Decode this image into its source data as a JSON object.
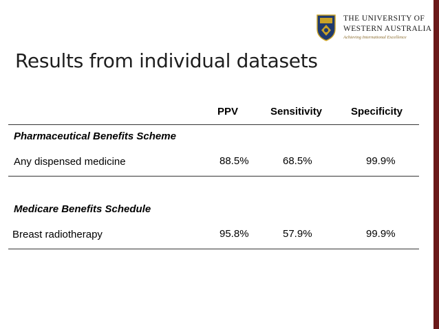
{
  "logo": {
    "line1": "THE UNIVERSITY OF",
    "line2": "WESTERN AUSTRALIA",
    "tagline": "Achieving International Excellence"
  },
  "slide": {
    "title": "Results from individual datasets"
  },
  "table": {
    "headers": [
      "PPV",
      "Sensitivity",
      "Specificity"
    ],
    "groups": [
      {
        "section": "Pharmaceutical Benefits Scheme",
        "row_label": "Any dispensed medicine",
        "values": [
          "88.5%",
          "68.5%",
          "99.9%"
        ]
      },
      {
        "section": "Medicare Benefits Schedule",
        "row_label": "Breast radiotherapy",
        "values": [
          "95.8%",
          "57.9%",
          "99.9%"
        ]
      }
    ]
  },
  "colors": {
    "accent_bar": "#6b1a1a",
    "crest_blue": "#1f3a6e",
    "crest_gold": "#c9a227"
  }
}
